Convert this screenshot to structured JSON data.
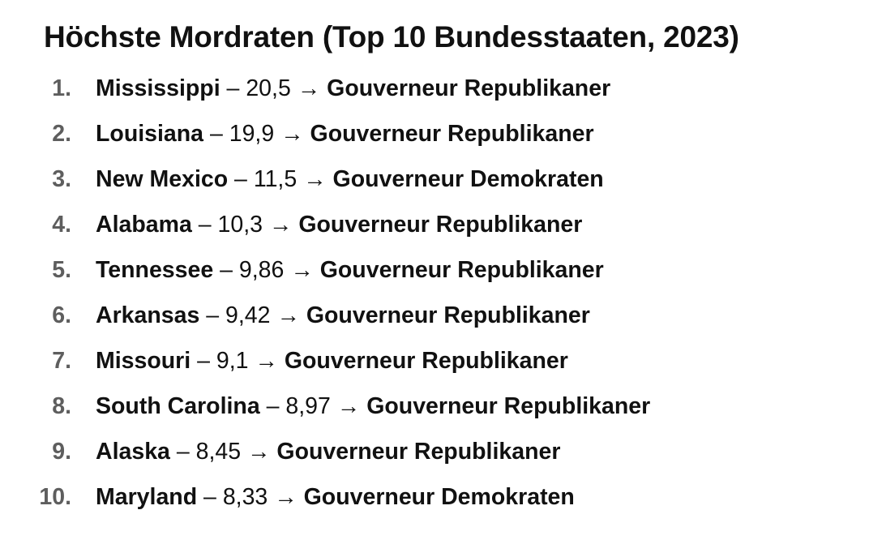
{
  "title": "Höchste Mordraten (Top 10 Bundesstaaten, 2023)",
  "items": [
    {
      "rank": "1.",
      "state": "Mississippi",
      "value": "20,5",
      "governor": "Gouverneur Republikaner"
    },
    {
      "rank": "2.",
      "state": "Louisiana",
      "value": "19,9",
      "governor": "Gouverneur Republikaner"
    },
    {
      "rank": "3.",
      "state": "New Mexico",
      "value": "11,5",
      "governor": "Gouverneur Demokraten"
    },
    {
      "rank": "4.",
      "state": "Alabama",
      "value": "10,3",
      "governor": "Gouverneur Republikaner"
    },
    {
      "rank": "5.",
      "state": "Tennessee",
      "value": "9,86",
      "governor": "Gouverneur Republikaner"
    },
    {
      "rank": "6.",
      "state": "Arkansas",
      "value": "9,42",
      "governor": "Gouverneur Republikaner"
    },
    {
      "rank": "7.",
      "state": "Missouri",
      "value": "9,1",
      "governor": "Gouverneur Republikaner"
    },
    {
      "rank": "8.",
      "state": "South Carolina",
      "value": "8,97",
      "governor": "Gouverneur Republikaner"
    },
    {
      "rank": "9.",
      "state": "Alaska",
      "value": "8,45",
      "governor": "Gouverneur Republikaner"
    },
    {
      "rank": "10.",
      "state": "Maryland",
      "value": "8,33",
      "governor": "Gouverneur Demokraten"
    }
  ]
}
